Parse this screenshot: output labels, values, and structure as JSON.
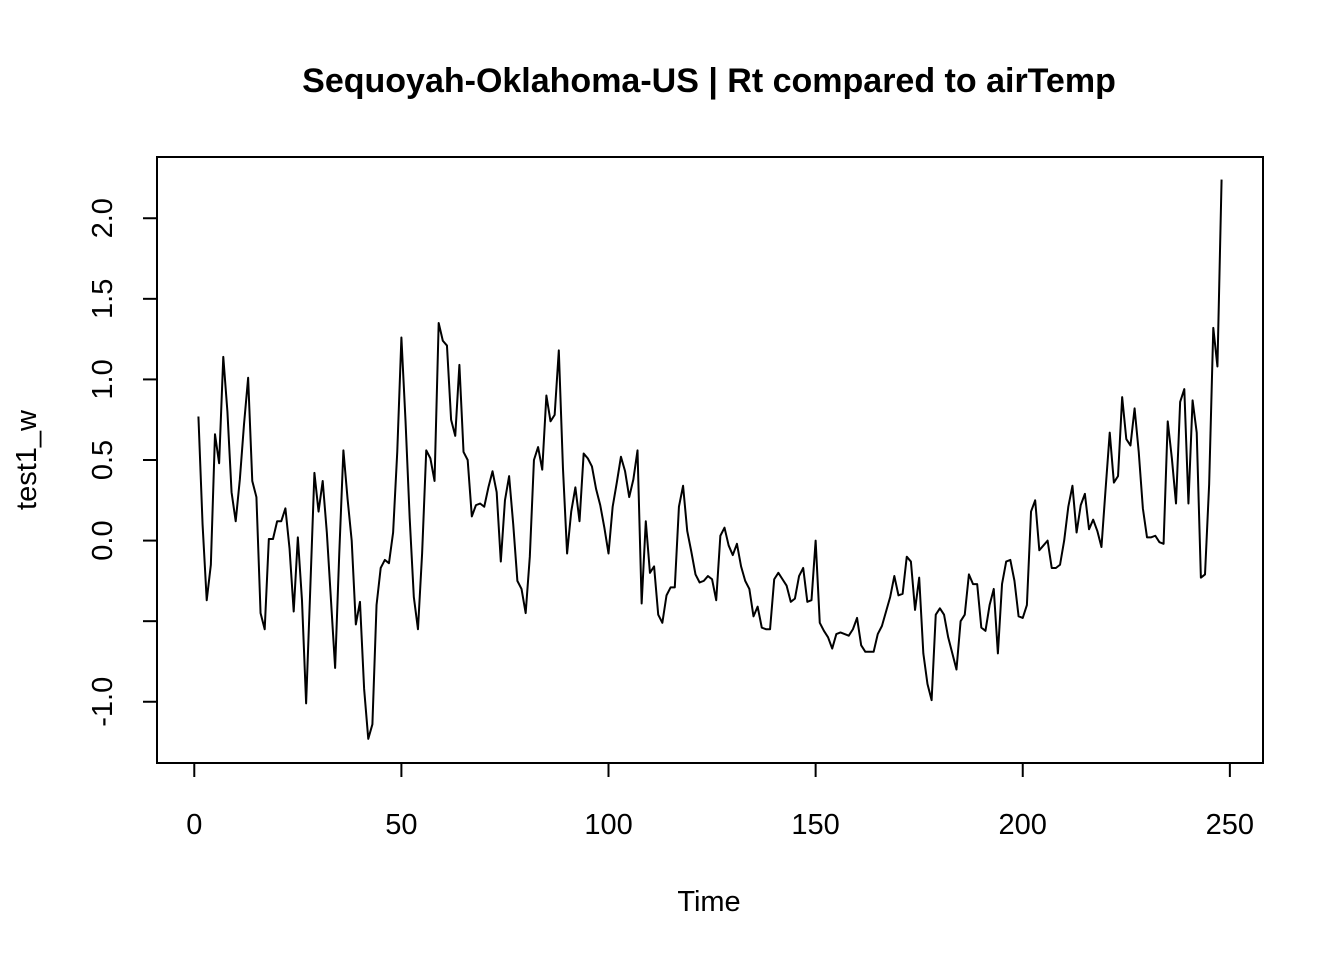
{
  "chart_data": {
    "type": "line",
    "title": "Sequoyah-Oklahoma-US | Rt compared to airTemp",
    "xlabel": "Time",
    "ylabel": "test1_w",
    "xlim": [
      -9,
      258
    ],
    "ylim": [
      -1.38,
      2.38
    ],
    "x_ticks": [
      0,
      50,
      100,
      150,
      200,
      250
    ],
    "x_tick_labels": [
      "0",
      "50",
      "100",
      "150",
      "200",
      "250"
    ],
    "y_ticks": [
      -1.0,
      -0.5,
      0.0,
      0.5,
      1.0,
      1.5,
      2.0
    ],
    "y_tick_labels": [
      "-1.0",
      "",
      "0.0",
      "0.5",
      "1.0",
      "1.5",
      "2.0"
    ],
    "grid": false,
    "line_color": "#000000",
    "series": [
      {
        "x": [
          1,
          2,
          3,
          4,
          5,
          6,
          7,
          8,
          9,
          10,
          11,
          12,
          13,
          14,
          15,
          16,
          17,
          18,
          19,
          20,
          21,
          22,
          23,
          24,
          25,
          26,
          27,
          28,
          29,
          30,
          31,
          32,
          33,
          34,
          35,
          36,
          37,
          38,
          39,
          40,
          41,
          42,
          43,
          44,
          45,
          46,
          47,
          48,
          49,
          50,
          51,
          52,
          53,
          54,
          55,
          56,
          57,
          58,
          59,
          60,
          61,
          62,
          63,
          64,
          65,
          66,
          67,
          68,
          69,
          70,
          71,
          72,
          73,
          74,
          75,
          76,
          77,
          78,
          79,
          80,
          81,
          82,
          83,
          84,
          85,
          86,
          87,
          88,
          89,
          90,
          91,
          92,
          93,
          94,
          95,
          96,
          97,
          98,
          99,
          100,
          101,
          102,
          103,
          104,
          105,
          106,
          107,
          108,
          109,
          110,
          111,
          112,
          113,
          114,
          115,
          116,
          117,
          118,
          119,
          120,
          121,
          122,
          123,
          124,
          125,
          126,
          127,
          128,
          129,
          130,
          131,
          132,
          133,
          134,
          135,
          136,
          137,
          138,
          139,
          140,
          141,
          142,
          143,
          144,
          145,
          146,
          147,
          148,
          149,
          150,
          151,
          152,
          153,
          154,
          155,
          156,
          157,
          158,
          159,
          160,
          161,
          162,
          163,
          164,
          165,
          166,
          167,
          168,
          169,
          170,
          171,
          172,
          173,
          174,
          175,
          176,
          177,
          178,
          179,
          180,
          181,
          182,
          183,
          184,
          185,
          186,
          187,
          188,
          189,
          190,
          191,
          192,
          193,
          194,
          195,
          196,
          197,
          198,
          199,
          200,
          201,
          202,
          203,
          204,
          205,
          206,
          207,
          208,
          209,
          210,
          211,
          212,
          213,
          214,
          215,
          216,
          217,
          218,
          219,
          220,
          221,
          222,
          223,
          224,
          225,
          226,
          227,
          228,
          229,
          230,
          231,
          232,
          233,
          234,
          235,
          236,
          237,
          238,
          239,
          240,
          241,
          242,
          243,
          244,
          245,
          246,
          247,
          248
        ],
        "values": [
          0.77,
          0.1,
          -0.37,
          -0.15,
          0.66,
          0.48,
          1.14,
          0.8,
          0.3,
          0.12,
          0.38,
          0.72,
          1.01,
          0.37,
          0.27,
          -0.45,
          -0.55,
          0.01,
          0.01,
          0.12,
          0.12,
          0.2,
          -0.05,
          -0.44,
          0.02,
          -0.37,
          -1.01,
          -0.3,
          0.42,
          0.18,
          0.37,
          0.05,
          -0.37,
          -0.79,
          -0.08,
          0.56,
          0.26,
          0.0,
          -0.52,
          -0.38,
          -0.92,
          -1.23,
          -1.14,
          -0.4,
          -0.17,
          -0.12,
          -0.14,
          0.05,
          0.55,
          1.26,
          0.74,
          0.14,
          -0.35,
          -0.55,
          -0.08,
          0.56,
          0.51,
          0.37,
          1.35,
          1.24,
          1.21,
          0.75,
          0.65,
          1.09,
          0.55,
          0.5,
          0.15,
          0.22,
          0.23,
          0.21,
          0.33,
          0.43,
          0.3,
          -0.13,
          0.25,
          0.4,
          0.1,
          -0.25,
          -0.3,
          -0.45,
          -0.1,
          0.5,
          0.58,
          0.44,
          0.9,
          0.74,
          0.78,
          1.18,
          0.45,
          -0.08,
          0.18,
          0.33,
          0.12,
          0.54,
          0.51,
          0.46,
          0.32,
          0.22,
          0.08,
          -0.08,
          0.21,
          0.36,
          0.52,
          0.43,
          0.27,
          0.38,
          0.56,
          -0.39,
          0.12,
          -0.2,
          -0.16,
          -0.46,
          -0.51,
          -0.34,
          -0.29,
          -0.29,
          0.21,
          0.34,
          0.06,
          -0.07,
          -0.21,
          -0.26,
          -0.25,
          -0.22,
          -0.24,
          -0.37,
          0.03,
          0.08,
          -0.03,
          -0.09,
          -0.02,
          -0.16,
          -0.25,
          -0.3,
          -0.47,
          -0.41,
          -0.54,
          -0.55,
          -0.55,
          -0.24,
          -0.2,
          -0.24,
          -0.28,
          -0.38,
          -0.36,
          -0.22,
          -0.17,
          -0.38,
          -0.37,
          0.0,
          -0.51,
          -0.56,
          -0.6,
          -0.67,
          -0.58,
          -0.57,
          -0.58,
          -0.59,
          -0.55,
          -0.48,
          -0.65,
          -0.69,
          -0.69,
          -0.69,
          -0.58,
          -0.53,
          -0.44,
          -0.35,
          -0.22,
          -0.34,
          -0.33,
          -0.1,
          -0.13,
          -0.43,
          -0.23,
          -0.7,
          -0.89,
          -0.99,
          -0.46,
          -0.42,
          -0.46,
          -0.6,
          -0.7,
          -0.8,
          -0.5,
          -0.46,
          -0.21,
          -0.27,
          -0.27,
          -0.54,
          -0.56,
          -0.4,
          -0.3,
          -0.7,
          -0.27,
          -0.13,
          -0.12,
          -0.25,
          -0.47,
          -0.48,
          -0.4,
          0.18,
          0.25,
          -0.06,
          -0.03,
          0.0,
          -0.17,
          -0.17,
          -0.15,
          0.0,
          0.21,
          0.34,
          0.05,
          0.22,
          0.29,
          0.07,
          0.13,
          0.06,
          -0.04,
          0.32,
          0.67,
          0.36,
          0.4,
          0.89,
          0.63,
          0.59,
          0.82,
          0.55,
          0.2,
          0.02,
          0.02,
          0.03,
          -0.01,
          -0.02,
          0.74,
          0.51,
          0.23,
          0.86,
          0.94,
          0.23,
          0.87,
          0.67,
          -0.23,
          -0.21,
          0.35,
          1.32,
          1.08,
          2.24
        ]
      }
    ]
  }
}
